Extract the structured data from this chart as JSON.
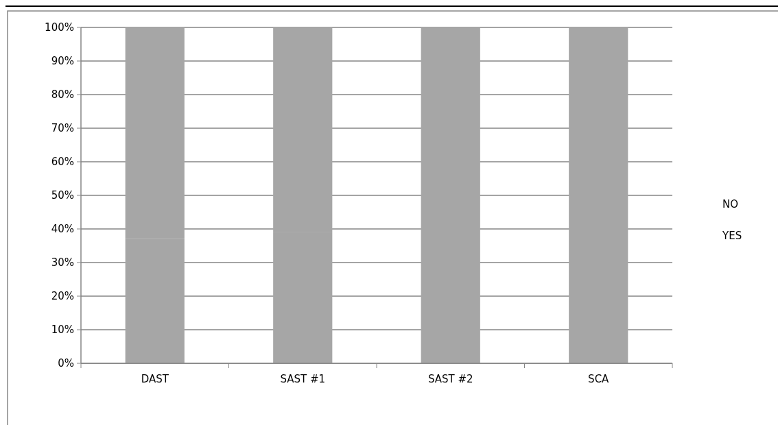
{
  "chart_data": {
    "type": "bar",
    "stacked": true,
    "categories": [
      "DAST",
      "SAST #1",
      "SAST #2",
      "SCA"
    ],
    "series": [
      {
        "name": "YES",
        "color": "#a6a6a6",
        "values": [
          37,
          39,
          40,
          40
        ]
      },
      {
        "name": "NO",
        "color": "#a6a6a6",
        "values": [
          63,
          61,
          60,
          60
        ]
      }
    ],
    "ylim": [
      0,
      100
    ],
    "yticks": [
      {
        "value": 0,
        "label": "0%"
      },
      {
        "value": 10,
        "label": "10%"
      },
      {
        "value": 20,
        "label": "20%"
      },
      {
        "value": 30,
        "label": "30%"
      },
      {
        "value": 40,
        "label": "40%"
      },
      {
        "value": 50,
        "label": "50%"
      },
      {
        "value": 60,
        "label": "60%"
      },
      {
        "value": 70,
        "label": "70%"
      },
      {
        "value": 80,
        "label": "80%"
      },
      {
        "value": 90,
        "label": "90%"
      },
      {
        "value": 100,
        "label": "100%"
      }
    ],
    "grid": "y",
    "legend": "right"
  }
}
